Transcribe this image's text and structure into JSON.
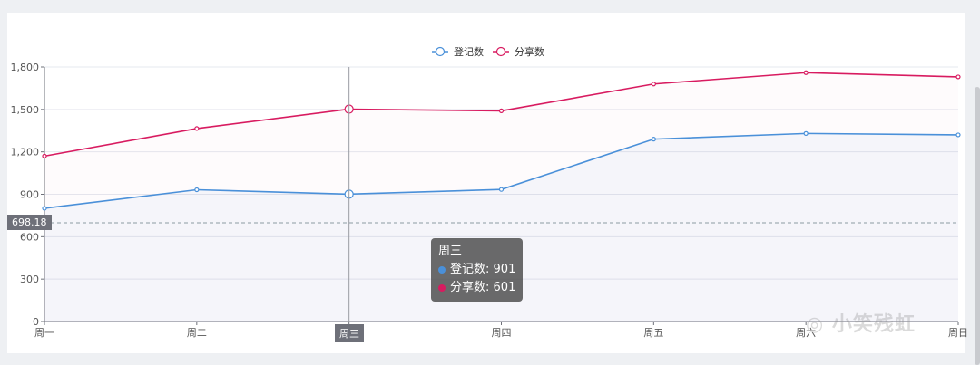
{
  "chart_data": {
    "type": "line",
    "categories": [
      "周一",
      "周二",
      "周三",
      "周四",
      "周五",
      "周六",
      "周日"
    ],
    "series": [
      {
        "name": "登记数",
        "color": "#4a90d9",
        "values": [
          801,
          932,
          901,
          934,
          1290,
          1330,
          1320
        ]
      },
      {
        "name": "分享数",
        "color": "#d81b60",
        "values": [
          1170,
          1365,
          1502,
          1490,
          1680,
          1760,
          1730
        ]
      }
    ],
    "ylim": [
      0,
      1800
    ],
    "yticks": [
      0,
      300,
      600,
      900,
      1200,
      1500,
      1800
    ],
    "ytick_labels": [
      "0",
      "300",
      "600",
      "900",
      "1,200",
      "1,500",
      "1,800"
    ],
    "legend_position": "top-center",
    "grid": true,
    "crosshair": {
      "category_index": 2,
      "category_label": "周三",
      "y_value_label": "698.18",
      "y_value": 698.18
    },
    "tooltip": {
      "title": "周三",
      "rows": [
        {
          "name": "登记数",
          "value": "901",
          "color": "#4a90d9"
        },
        {
          "name": "分享数",
          "value": "601",
          "color": "#d81b60"
        }
      ]
    }
  },
  "watermark": "小笑残虹"
}
